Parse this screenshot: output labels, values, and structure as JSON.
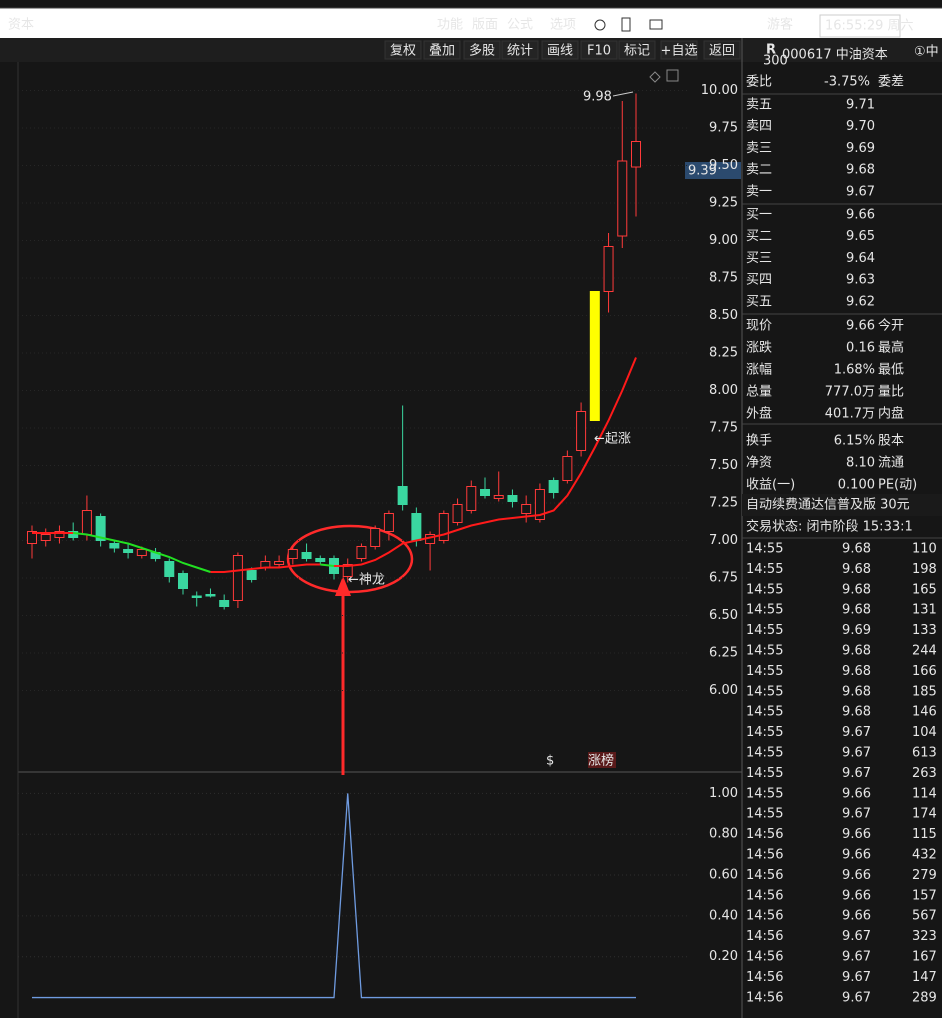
{
  "top_bar": {
    "title": "资本",
    "menu": [
      "功能",
      "版面",
      "公式",
      "选项"
    ],
    "user": "游客",
    "clock": "16:55:29 周六"
  },
  "toolbar": [
    "复权",
    "叠加",
    "多股",
    "统计",
    "画线",
    "F10",
    "标记",
    "+自选",
    "返回"
  ],
  "price_chart": {
    "type": "candlestick",
    "open": [
      6.98,
      7.0,
      7.02,
      7.06,
      7.04,
      7.16,
      6.98,
      6.94,
      6.9,
      6.92,
      6.86,
      6.78,
      6.63,
      6.64,
      6.6,
      6.6,
      6.8,
      6.82,
      6.84,
      6.88,
      6.92,
      6.88,
      6.88,
      6.76,
      6.88,
      6.96,
      7.06,
      7.36,
      7.18,
      6.98,
      7.0,
      7.12,
      7.2,
      7.34,
      7.28,
      7.3,
      7.18,
      7.14,
      7.4,
      7.4,
      7.6,
      7.8,
      8.66,
      9.03,
      9.49
    ],
    "high": [
      7.1,
      7.08,
      7.1,
      7.12,
      7.3,
      7.18,
      7.0,
      6.98,
      6.96,
      6.95,
      6.88,
      6.8,
      6.66,
      6.68,
      6.64,
      6.92,
      6.82,
      6.9,
      6.9,
      6.96,
      6.98,
      6.9,
      6.9,
      6.88,
      6.98,
      7.1,
      7.2,
      7.9,
      7.22,
      7.06,
      7.2,
      7.28,
      7.4,
      7.42,
      7.46,
      7.34,
      7.3,
      7.38,
      7.42,
      7.6,
      7.92,
      8.66,
      9.05,
      9.93,
      9.98
    ],
    "low": [
      6.88,
      6.96,
      6.98,
      7.0,
      7.0,
      6.96,
      6.92,
      6.88,
      6.88,
      6.86,
      6.72,
      6.64,
      6.56,
      6.62,
      6.54,
      6.55,
      6.72,
      6.8,
      6.82,
      6.84,
      6.86,
      6.84,
      6.74,
      6.72,
      6.86,
      6.94,
      7.0,
      7.2,
      6.96,
      6.8,
      6.98,
      7.1,
      7.18,
      7.28,
      7.26,
      7.22,
      7.12,
      7.12,
      7.28,
      7.38,
      7.56,
      7.8,
      8.52,
      8.95,
      9.16
    ],
    "close": [
      7.06,
      7.04,
      7.06,
      7.02,
      7.2,
      7.0,
      6.95,
      6.92,
      6.94,
      6.88,
      6.76,
      6.68,
      6.62,
      6.63,
      6.56,
      6.9,
      6.74,
      6.86,
      6.86,
      6.94,
      6.88,
      6.86,
      6.78,
      6.84,
      6.96,
      7.08,
      7.18,
      7.24,
      7.0,
      7.04,
      7.18,
      7.24,
      7.36,
      7.3,
      7.3,
      7.26,
      7.24,
      7.34,
      7.32,
      7.56,
      7.86,
      8.66,
      8.96,
      9.53,
      9.66
    ],
    "up_color": "#ff3a3a",
    "down_color": "#3ad7a0",
    "highlight_index": 41,
    "highlight_color": "#ffff00",
    "ma": {
      "values": [
        7.05,
        7.05,
        7.05,
        7.05,
        7.04,
        7.02,
        7.0,
        6.98,
        6.95,
        6.92,
        6.89,
        6.85,
        6.82,
        6.79,
        6.79,
        6.8,
        6.81,
        6.82,
        6.82,
        6.83,
        6.84,
        6.84,
        6.83,
        6.83,
        6.84,
        6.87,
        6.92,
        6.98,
        7.0,
        7.02,
        7.04,
        7.07,
        7.1,
        7.12,
        7.14,
        7.15,
        7.16,
        7.17,
        7.2,
        7.3,
        7.45,
        7.62,
        7.8,
        8.0,
        8.22
      ],
      "up_color": "#ff1a1a",
      "down_color": "#22e022"
    },
    "ylim": [
      5.47,
      10.19
    ],
    "yticks": [
      {
        "value": 6,
        "label": "6.00"
      },
      {
        "value": 6.25,
        "label": "6.25"
      },
      {
        "value": 6.5,
        "label": "6.50"
      },
      {
        "value": 6.75,
        "label": "6.75"
      },
      {
        "value": 7,
        "label": "7.00"
      },
      {
        "value": 7.25,
        "label": "7.25"
      },
      {
        "value": 7.5,
        "label": "7.50"
      },
      {
        "value": 7.75,
        "label": "7.75"
      },
      {
        "value": 8,
        "label": "8.00"
      },
      {
        "value": 8.25,
        "label": "8.25"
      },
      {
        "value": 8.5,
        "label": "8.50"
      },
      {
        "value": 8.75,
        "label": "8.75"
      },
      {
        "value": 9,
        "label": "9.00"
      },
      {
        "value": 9.25,
        "label": "9.25"
      },
      {
        "value": 9.5,
        "label": "9.50"
      },
      {
        "value": 9.75,
        "label": "9.75"
      },
      {
        "value": 10,
        "label": "10.00"
      }
    ],
    "grid": true,
    "current_price_tag": "9.39",
    "annotations": [
      "9.98",
      "←神龙",
      "←起涨",
      "$",
      "涨榜"
    ]
  },
  "indicator_chart": {
    "type": "line",
    "values": [
      0,
      0,
      0,
      0,
      0,
      0,
      0,
      0,
      0,
      0,
      0,
      0,
      0,
      0,
      0,
      0,
      0,
      0,
      0,
      0,
      0,
      0,
      0,
      1,
      0,
      0,
      0,
      0,
      0,
      0,
      0,
      0,
      0,
      0,
      0,
      0,
      0,
      0,
      0,
      0,
      0,
      0,
      0,
      0,
      0
    ],
    "color": "#6f9be0",
    "ylim": [
      -0.1,
      1.09
    ],
    "yticks": [
      {
        "value": 0.2,
        "label": "0.20"
      },
      {
        "value": 0.4,
        "label": "0.40"
      },
      {
        "value": 0.6,
        "label": "0.60"
      },
      {
        "value": 0.8,
        "label": "0.80"
      },
      {
        "value": 1,
        "label": "1.00"
      }
    ],
    "grid": true
  },
  "quote_panel": {
    "badge": [
      "R",
      "300"
    ],
    "code": "000617 中油资本",
    "suffix": "①中",
    "committee": [
      "委比",
      "-3.75%",
      "委差"
    ],
    "asks": [
      [
        "卖五",
        "9.71"
      ],
      [
        "卖四",
        "9.70"
      ],
      [
        "卖三",
        "9.69"
      ],
      [
        "卖二",
        "9.68"
      ],
      [
        "卖一",
        "9.67"
      ]
    ],
    "bids": [
      [
        "买一",
        "9.66"
      ],
      [
        "买二",
        "9.65"
      ],
      [
        "买三",
        "9.64"
      ],
      [
        "买四",
        "9.63"
      ],
      [
        "买五",
        "9.62"
      ]
    ],
    "stats": [
      [
        "现价",
        "9.66",
        "今开"
      ],
      [
        "涨跌",
        "0.16",
        "最高"
      ],
      [
        "涨幅",
        "1.68%",
        "最低"
      ],
      [
        "总量",
        "777.0万",
        "量比"
      ],
      [
        "外盘",
        "401.7万",
        "内盘"
      ],
      [
        "换手",
        "6.15%",
        "股本"
      ],
      [
        "净资",
        "8.10",
        "流通"
      ],
      [
        "收益(一)",
        "0.100",
        "PE(动)"
      ]
    ],
    "ad": "自动续费通达信普及版 30元",
    "status": "交易状态: 闭市阶段 15:33:1",
    "trades": [
      [
        "14:55",
        "9.68",
        "110"
      ],
      [
        "14:55",
        "9.68",
        "198"
      ],
      [
        "14:55",
        "9.68",
        "165"
      ],
      [
        "14:55",
        "9.68",
        "131"
      ],
      [
        "14:55",
        "9.69",
        "133"
      ],
      [
        "14:55",
        "9.68",
        "244"
      ],
      [
        "14:55",
        "9.68",
        "166"
      ],
      [
        "14:55",
        "9.68",
        "185"
      ],
      [
        "14:55",
        "9.68",
        "146"
      ],
      [
        "14:55",
        "9.67",
        "104"
      ],
      [
        "14:55",
        "9.67",
        "613"
      ],
      [
        "14:55",
        "9.67",
        "263"
      ],
      [
        "14:55",
        "9.66",
        "114"
      ],
      [
        "14:55",
        "9.67",
        "174"
      ],
      [
        "14:56",
        "9.66",
        "115"
      ],
      [
        "14:56",
        "9.66",
        "432"
      ],
      [
        "14:56",
        "9.66",
        "279"
      ],
      [
        "14:56",
        "9.66",
        "157"
      ],
      [
        "14:56",
        "9.66",
        "567"
      ],
      [
        "14:56",
        "9.67",
        "323"
      ],
      [
        "14:56",
        "9.67",
        "167"
      ],
      [
        "14:56",
        "9.67",
        "147"
      ],
      [
        "14:56",
        "9.67",
        "289"
      ]
    ]
  }
}
